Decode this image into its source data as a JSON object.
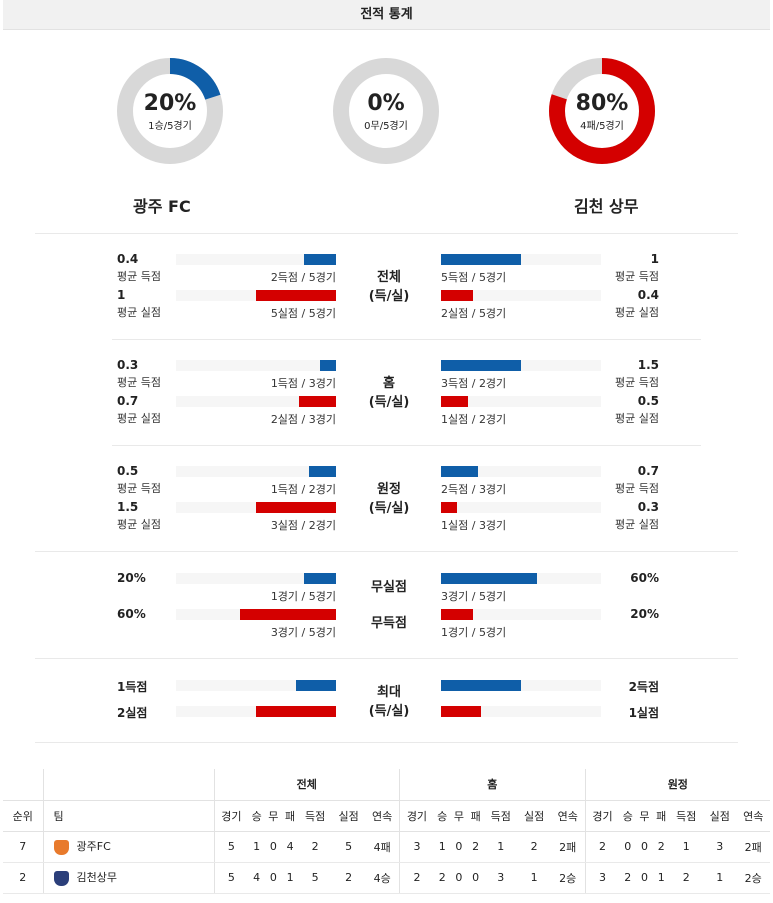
{
  "title": "전적 통계",
  "donuts": [
    {
      "pct_label": "20%",
      "sub": "1승/5경기",
      "fraction": 0.2,
      "color": "#0f5ea8"
    },
    {
      "pct_label": "0%",
      "sub": "0무/5경기",
      "fraction": 0.0,
      "color": "#888888"
    },
    {
      "pct_label": "80%",
      "sub": "4패/5경기",
      "fraction": 0.8,
      "color": "#d40000"
    }
  ],
  "teams": {
    "left": "광주 FC",
    "right": "김천 상무"
  },
  "sections": [
    {
      "center": [
        "전체",
        "(득/실)"
      ],
      "rows": [
        {
          "lval": "0.4",
          "llbl": "평균 득점",
          "lcnt": "2득점 / 5경기",
          "lfrac": 0.2,
          "rval": "1",
          "rlbl": "평균 득점",
          "rcnt": "5득점 / 5경기",
          "rfrac": 0.5,
          "color": "blue"
        },
        {
          "lval": "1",
          "llbl": "평균 실점",
          "lcnt": "5실점 / 5경기",
          "lfrac": 0.5,
          "rval": "0.4",
          "rlbl": "평균 실점",
          "rcnt": "2실점 / 5경기",
          "rfrac": 0.2,
          "color": "red"
        }
      ]
    },
    {
      "center": [
        "홈",
        "(득/실)"
      ],
      "rows": [
        {
          "lval": "0.3",
          "llbl": "평균 득점",
          "lcnt": "1득점 / 3경기",
          "lfrac": 0.1,
          "rval": "1.5",
          "rlbl": "평균 득점",
          "rcnt": "3득점 / 2경기",
          "rfrac": 0.5,
          "color": "blue"
        },
        {
          "lval": "0.7",
          "llbl": "평균 실점",
          "lcnt": "2실점 / 3경기",
          "lfrac": 0.23,
          "rval": "0.5",
          "rlbl": "평균 실점",
          "rcnt": "1실점 / 2경기",
          "rfrac": 0.17,
          "color": "red"
        }
      ]
    },
    {
      "center": [
        "원정",
        "(득/실)"
      ],
      "rows": [
        {
          "lval": "0.5",
          "llbl": "평균 득점",
          "lcnt": "1득점 / 2경기",
          "lfrac": 0.17,
          "rval": "0.7",
          "rlbl": "평균 득점",
          "rcnt": "2득점 / 3경기",
          "rfrac": 0.23,
          "color": "blue"
        },
        {
          "lval": "1.5",
          "llbl": "평균 실점",
          "lcnt": "3실점 / 2경기",
          "lfrac": 0.5,
          "rval": "0.3",
          "rlbl": "평균 실점",
          "rcnt": "1실점 / 3경기",
          "rfrac": 0.1,
          "color": "red"
        }
      ]
    }
  ],
  "pct_section": {
    "rows": [
      {
        "center": "무실점",
        "lval": "20%",
        "lcnt": "1경기 / 5경기",
        "lfrac": 0.2,
        "rval": "60%",
        "rcnt": "3경기 / 5경기",
        "rfrac": 0.6,
        "color": "blue"
      },
      {
        "center": "무득점",
        "lval": "60%",
        "lcnt": "3경기 / 5경기",
        "lfrac": 0.6,
        "rval": "20%",
        "rcnt": "1경기 / 5경기",
        "rfrac": 0.2,
        "color": "red"
      }
    ]
  },
  "max_section": {
    "center": [
      "최대",
      "(득/실)"
    ],
    "rows": [
      {
        "lval": "1득점",
        "lfrac": 0.25,
        "rval": "2득점",
        "rfrac": 0.5,
        "color": "blue"
      },
      {
        "lval": "2실점",
        "lfrac": 0.5,
        "rval": "1실점",
        "rfrac": 0.25,
        "color": "red"
      }
    ]
  },
  "standings": {
    "groups": [
      "전체",
      "홈",
      "원정"
    ],
    "headers": [
      "순위",
      "팀"
    ],
    "sub_headers": [
      "경기",
      "승",
      "무",
      "패",
      "득점",
      "실점",
      "연속"
    ],
    "rows": [
      {
        "rank": "7",
        "team": "광주FC",
        "crest_color": "#e87a2c",
        "total": [
          "5",
          "1",
          "0",
          "4",
          "2",
          "5",
          "4패"
        ],
        "home": [
          "3",
          "1",
          "0",
          "2",
          "1",
          "2",
          "2패"
        ],
        "away": [
          "2",
          "0",
          "0",
          "2",
          "1",
          "3",
          "2패"
        ]
      },
      {
        "rank": "2",
        "team": "김천상무",
        "crest_color": "#2b3f7a",
        "total": [
          "5",
          "4",
          "0",
          "1",
          "5",
          "2",
          "4승"
        ],
        "home": [
          "2",
          "2",
          "0",
          "0",
          "3",
          "1",
          "2승"
        ],
        "away": [
          "3",
          "2",
          "0",
          "1",
          "2",
          "1",
          "2승"
        ]
      }
    ]
  }
}
